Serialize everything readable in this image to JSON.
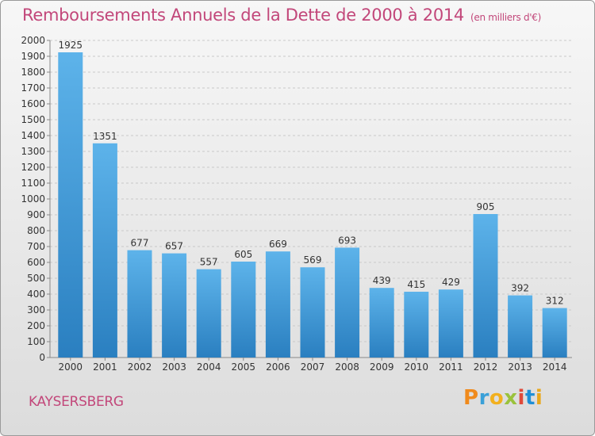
{
  "header": {
    "title": "Remboursements Annuels de la Dette de 2000 à 2014",
    "subtitle": "(en milliers d'€)"
  },
  "footer": {
    "commune": "KAYSERSBERG"
  },
  "logo": {
    "text": "Proxiti",
    "colors": [
      "#f08a1c",
      "#3aa0d8",
      "#f2b01e",
      "#9ac23c",
      "#e04a3a",
      "#1f8fd6",
      "#e9a81c"
    ]
  },
  "chart_data": {
    "type": "bar",
    "title": "Remboursements Annuels de la Dette de 2000 à 2014",
    "categories": [
      "2000",
      "2001",
      "2002",
      "2003",
      "2004",
      "2005",
      "2006",
      "2007",
      "2008",
      "2009",
      "2010",
      "2011",
      "2012",
      "2013",
      "2014"
    ],
    "values": [
      1925,
      1351,
      677,
      657,
      557,
      605,
      669,
      569,
      693,
      439,
      415,
      429,
      905,
      392,
      312
    ],
    "ylim": [
      0,
      2000
    ],
    "ytick_step": 100,
    "grid": true,
    "bar_color": "#3d95d4"
  }
}
